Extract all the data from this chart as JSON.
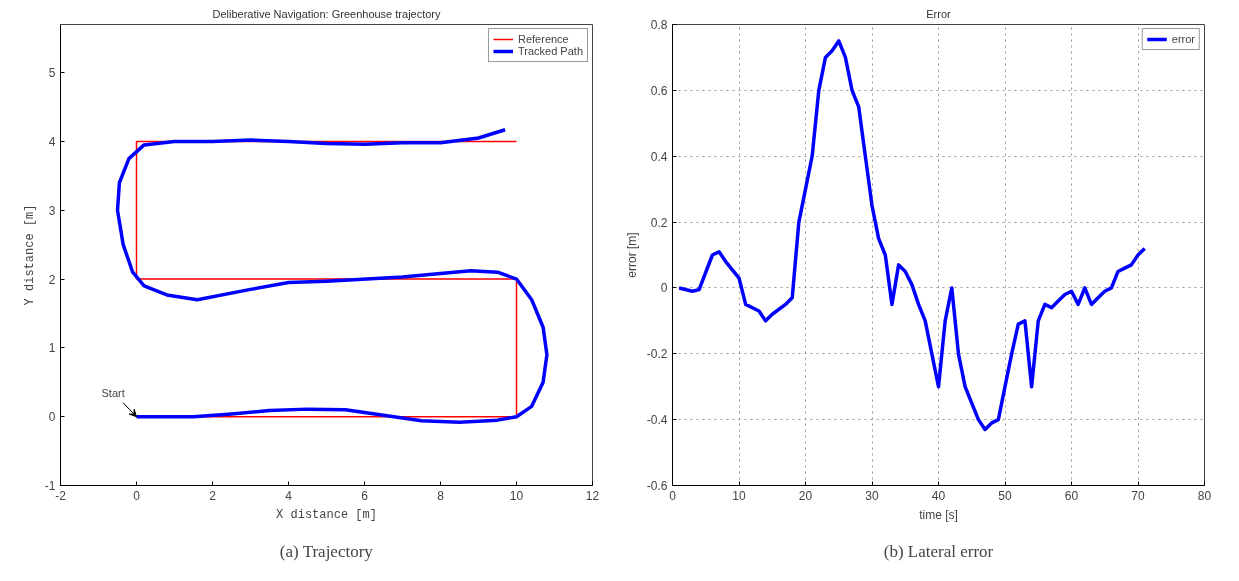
{
  "chart_data": [
    {
      "type": "line",
      "title": "Deliberative Navigation: Greenhouse trajectory",
      "xlabel": "X distance [m]",
      "ylabel": "Y distance [m]",
      "xlim": [
        -2,
        12
      ],
      "ylim": [
        -1,
        5.7
      ],
      "xticks": [
        -2,
        0,
        2,
        4,
        6,
        8,
        10,
        12
      ],
      "yticks": [
        -1,
        0,
        1,
        2,
        3,
        4,
        5
      ],
      "grid": false,
      "legend": "top right",
      "series": [
        {
          "name": "Reference",
          "color": "#ff0000",
          "x": [
            10,
            0,
            0,
            10,
            10,
            0
          ],
          "values": [
            4,
            4,
            2,
            2,
            0,
            0
          ]
        },
        {
          "name": "Tracked Path",
          "color": "#0000ff",
          "x": [
            0,
            0.5,
            1.5,
            2.5,
            3.5,
            4.5,
            5.5,
            6.5,
            7.5,
            8.5,
            9.5,
            10,
            10.4,
            10.7,
            10.8,
            10.7,
            10.4,
            10,
            9.5,
            8.8,
            8,
            7,
            5,
            4,
            3,
            1.6,
            0.8,
            0.2,
            -0.1,
            -0.35,
            -0.5,
            -0.45,
            -0.2,
            0.2,
            1,
            2,
            3,
            4,
            5,
            6,
            7,
            8,
            9,
            9.7
          ],
          "values": [
            0,
            0,
            0,
            0.04,
            0.09,
            0.11,
            0.1,
            0.02,
            -0.06,
            -0.08,
            -0.05,
            0,
            0.15,
            0.5,
            0.9,
            1.3,
            1.7,
            2.0,
            2.1,
            2.12,
            2.08,
            2.03,
            1.97,
            1.95,
            1.85,
            1.7,
            1.77,
            1.9,
            2.1,
            2.5,
            3.0,
            3.4,
            3.75,
            3.95,
            4.0,
            4.0,
            4.02,
            4.0,
            3.97,
            3.96,
            3.98,
            3.98,
            4.05,
            4.17
          ]
        }
      ],
      "annotations": [
        {
          "text": "Start",
          "x": 0,
          "y": 0
        },
        "(a) Trajectory"
      ]
    },
    {
      "type": "line",
      "title": "Error",
      "xlabel": "time [s]",
      "ylabel": "error [m]",
      "xlim": [
        0,
        80
      ],
      "ylim": [
        -0.6,
        0.8
      ],
      "xticks": [
        0,
        10,
        20,
        30,
        40,
        50,
        60,
        70,
        80
      ],
      "yticks": [
        -0.6,
        -0.4,
        -0.2,
        0,
        0.2,
        0.4,
        0.6,
        0.8
      ],
      "grid": true,
      "legend": "top right",
      "series": [
        {
          "name": "error",
          "color": "#0000ff",
          "x": [
            1,
            3,
            4,
            6,
            7,
            8,
            10,
            11,
            13,
            14,
            15,
            17,
            18,
            19,
            21,
            22,
            23,
            24,
            25,
            26,
            27,
            28,
            29,
            30,
            31,
            32,
            33,
            34,
            35,
            36,
            37,
            38,
            39,
            40,
            41,
            42,
            43,
            44,
            45,
            46,
            47,
            48,
            49,
            50,
            51,
            52,
            53,
            54,
            55,
            56,
            57,
            58,
            59,
            60,
            61,
            62,
            63,
            64,
            65,
            66,
            67,
            68,
            69,
            70,
            71
          ],
          "values": [
            0,
            -0.01,
            -0.005,
            0.1,
            0.11,
            0.08,
            0.03,
            -0.05,
            -0.07,
            -0.1,
            -0.08,
            -0.05,
            -0.03,
            0.2,
            0.4,
            0.6,
            0.7,
            0.72,
            0.75,
            0.7,
            0.6,
            0.55,
            0.4,
            0.25,
            0.15,
            0.1,
            -0.05,
            0.07,
            0.05,
            0.01,
            -0.05,
            -0.1,
            -0.2,
            -0.3,
            -0.1,
            0,
            -0.2,
            -0.3,
            -0.35,
            -0.4,
            -0.43,
            -0.41,
            -0.4,
            -0.3,
            -0.2,
            -0.11,
            -0.1,
            -0.3,
            -0.1,
            -0.05,
            -0.06,
            -0.04,
            -0.02,
            -0.01,
            -0.05,
            0,
            -0.05,
            -0.03,
            -0.01,
            0,
            0.05,
            0.06,
            0.07,
            0.1,
            0.12
          ]
        }
      ],
      "annotations": [
        "(b) Lateral error"
      ]
    }
  ]
}
